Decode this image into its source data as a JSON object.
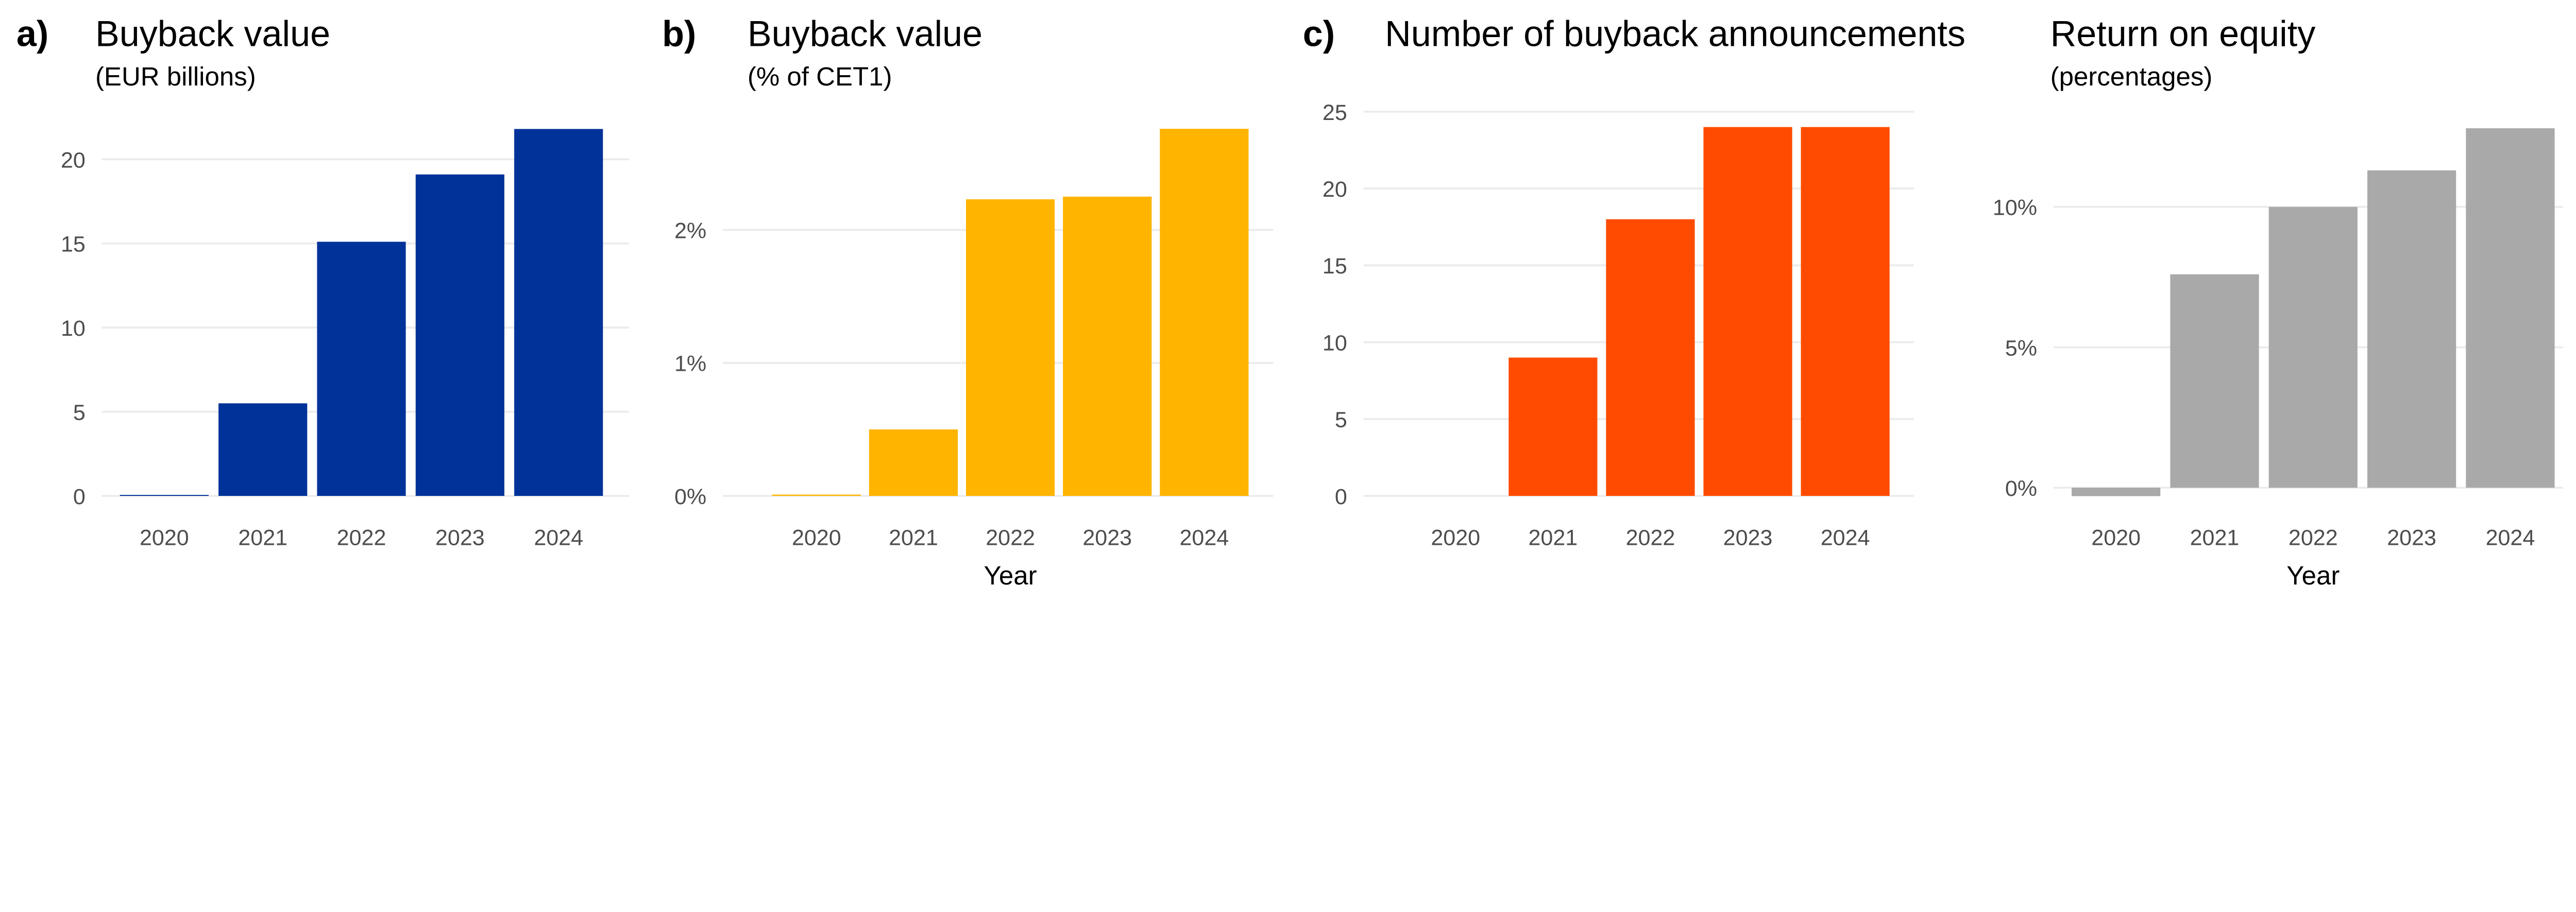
{
  "chart_data": [
    {
      "type": "bar",
      "panel_label": "a)",
      "title": "Buyback value",
      "subtitle": "(EUR billions)",
      "xlabel": "",
      "categories": [
        "2020",
        "2021",
        "2022",
        "2023",
        "2024"
      ],
      "values": [
        0.05,
        5.5,
        15.1,
        19.1,
        21.8
      ],
      "yticks": [
        0,
        5,
        10,
        15,
        20
      ],
      "ytick_labels": [
        "0",
        "5",
        "10",
        "15",
        "20"
      ],
      "color": "#003299",
      "grid": true
    },
    {
      "type": "bar",
      "panel_label": "b)",
      "title": "Buyback value",
      "subtitle": "(% of CET1)",
      "xlabel": "Year",
      "categories": [
        "2020",
        "2021",
        "2022",
        "2023",
        "2024"
      ],
      "values": [
        0.01,
        0.5,
        2.23,
        2.25,
        2.76
      ],
      "yticks": [
        0,
        1,
        2
      ],
      "ytick_labels": [
        "0%",
        "1%",
        "2%"
      ],
      "color": "#FFB400",
      "grid": true
    },
    {
      "type": "bar",
      "panel_label": "c)",
      "title": "Number of buyback announcements",
      "subtitle": "",
      "xlabel": "",
      "categories": [
        "2020",
        "2021",
        "2022",
        "2023",
        "2024"
      ],
      "values": [
        0,
        9,
        18,
        24,
        24
      ],
      "yticks": [
        0,
        5,
        10,
        15,
        20,
        25
      ],
      "ytick_labels": [
        "0",
        "5",
        "10",
        "15",
        "20",
        "25"
      ],
      "color": "#FF4B00",
      "grid": true
    },
    {
      "type": "bar",
      "panel_label": "",
      "title": "Return on equity",
      "subtitle": "(percentages)",
      "xlabel": "Year",
      "categories": [
        "2020",
        "2021",
        "2022",
        "2023",
        "2024"
      ],
      "values": [
        -0.3,
        7.6,
        10.0,
        11.3,
        12.8
      ],
      "yticks": [
        0,
        5,
        10
      ],
      "ytick_labels": [
        "0%",
        "5%",
        "10%"
      ],
      "color": "#A9A9A9",
      "grid": true
    }
  ]
}
